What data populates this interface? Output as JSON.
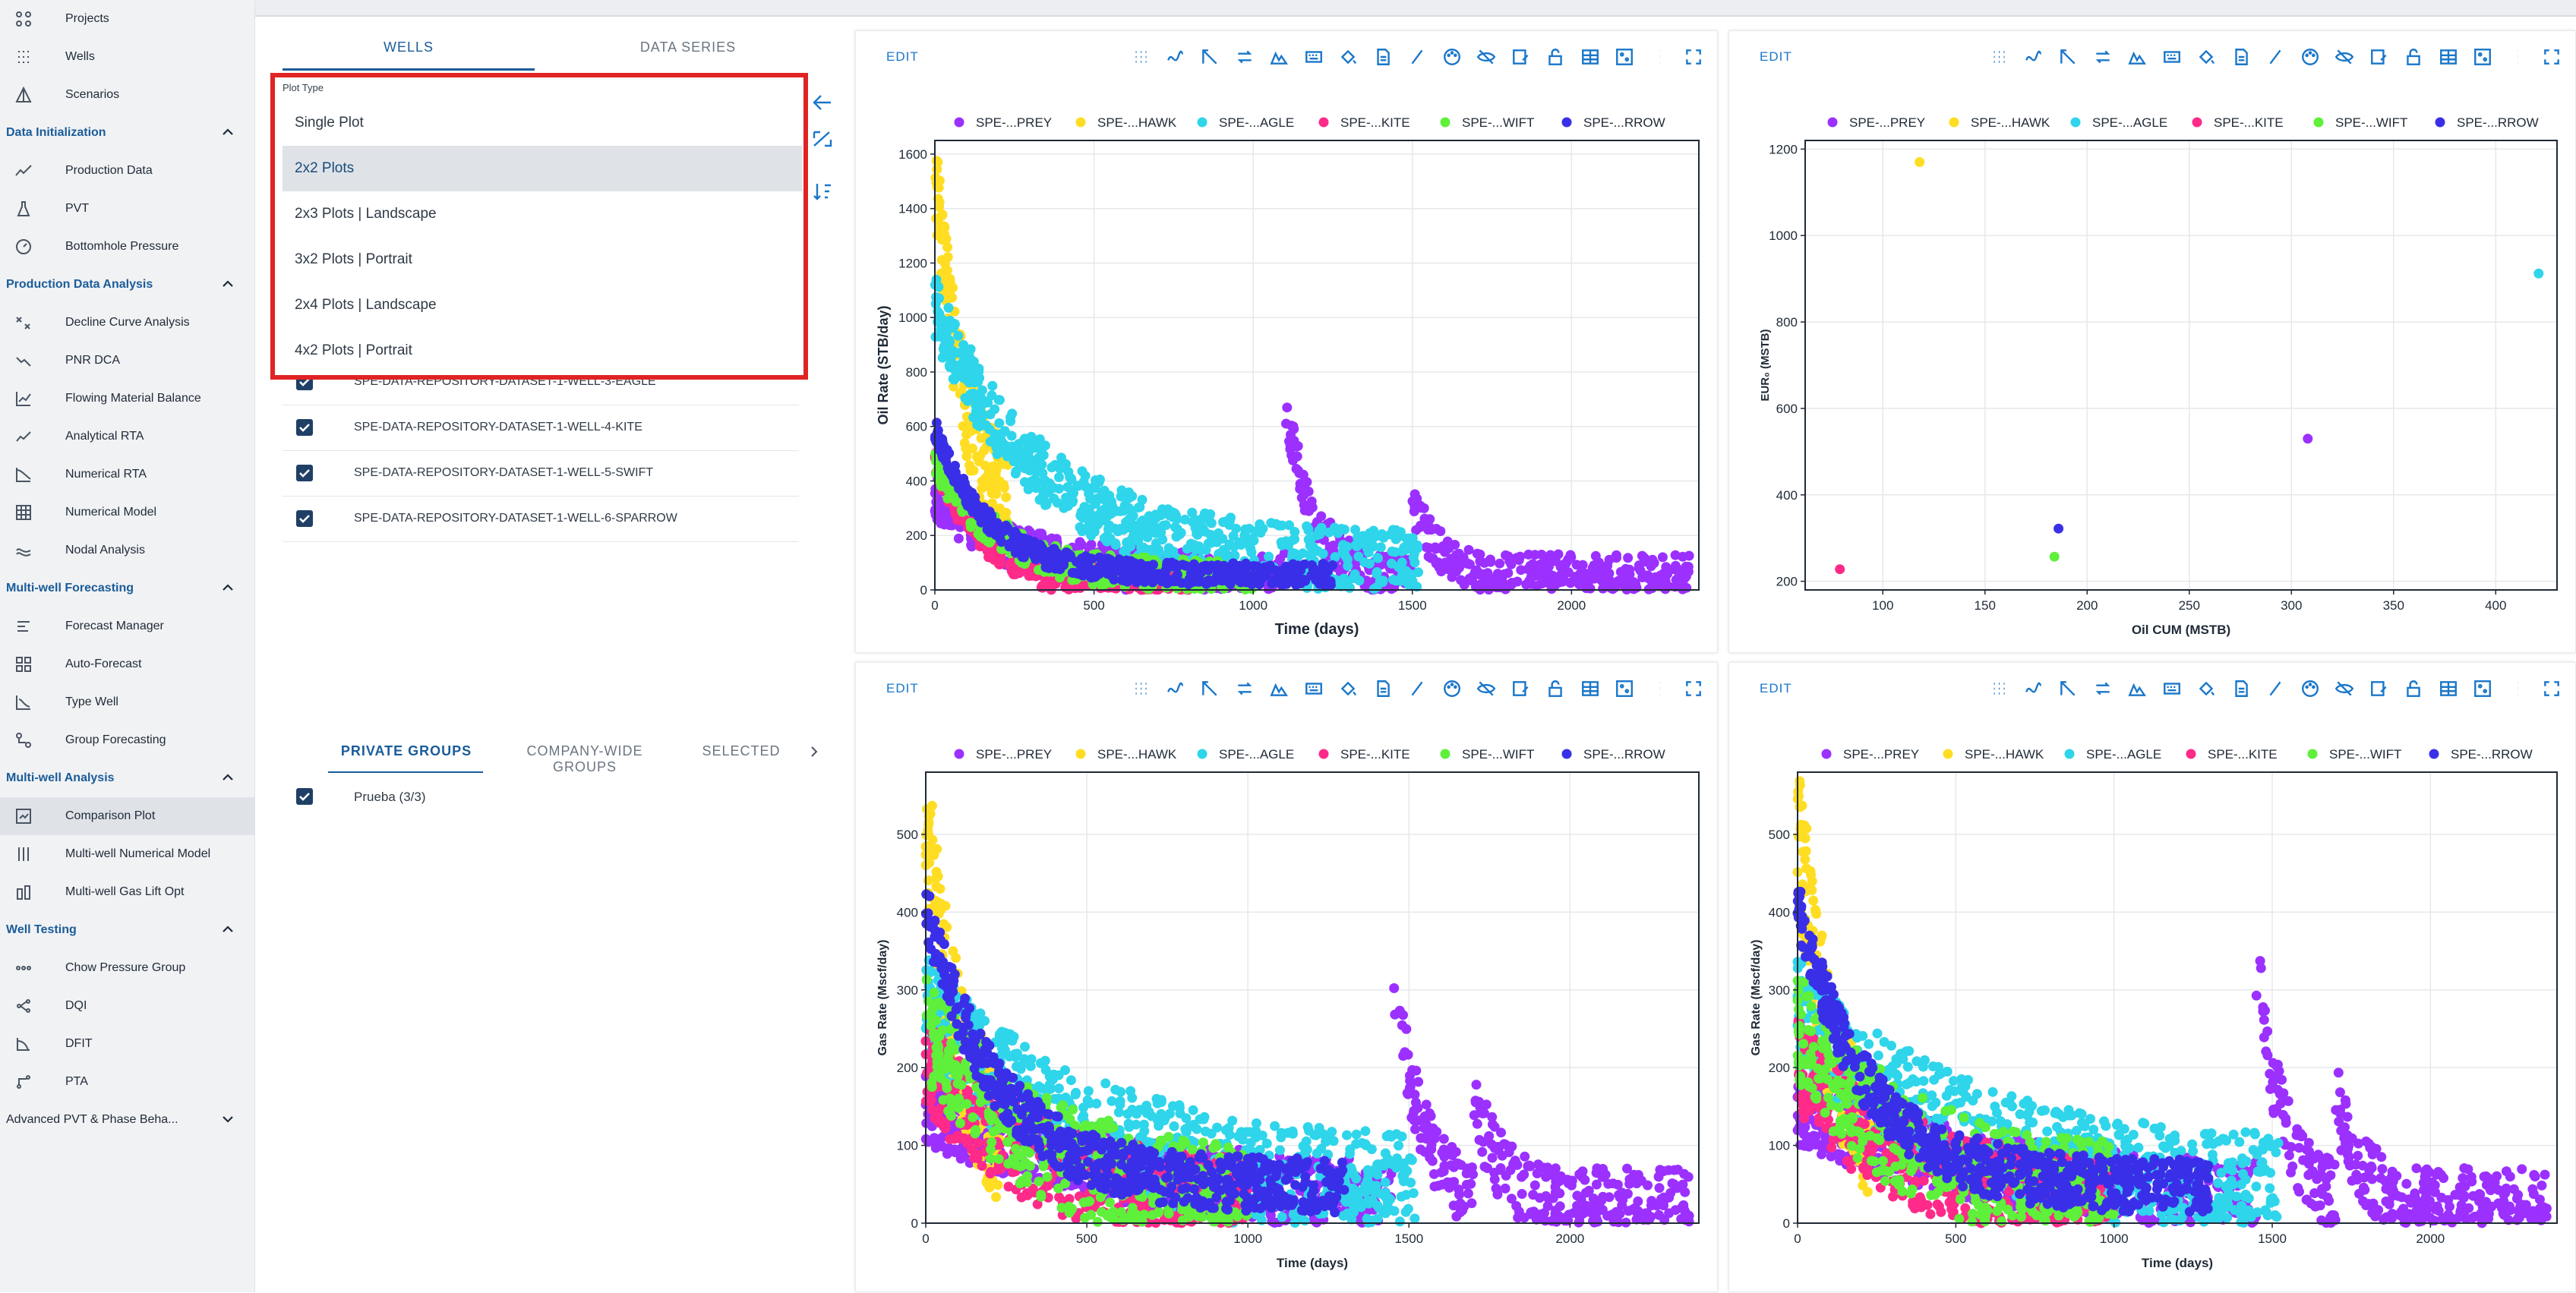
{
  "sidebar": {
    "top_items": [
      {
        "label": "Projects",
        "icon": "projects-icon"
      },
      {
        "label": "Wells",
        "icon": "wells-icon"
      },
      {
        "label": "Scenarios",
        "icon": "scenarios-icon"
      }
    ],
    "sections": [
      {
        "title": "Data Initialization",
        "items": [
          {
            "label": "Production Data",
            "icon": "production-data-icon"
          },
          {
            "label": "PVT",
            "icon": "pvt-flask-icon"
          },
          {
            "label": "Bottomhole Pressure",
            "icon": "gauge-icon"
          }
        ]
      },
      {
        "title": "Production Data Analysis",
        "items": [
          {
            "label": "Decline Curve Analysis",
            "icon": "decline-curve-icon"
          },
          {
            "label": "PNR DCA",
            "icon": "pnr-dca-icon"
          },
          {
            "label": "Flowing Material Balance",
            "icon": "material-balance-icon"
          },
          {
            "label": "Analytical RTA",
            "icon": "analytical-rta-icon"
          },
          {
            "label": "Numerical RTA",
            "icon": "numerical-rta-icon"
          },
          {
            "label": "Numerical Model",
            "icon": "numerical-model-icon"
          },
          {
            "label": "Nodal Analysis",
            "icon": "nodal-analysis-icon"
          }
        ]
      },
      {
        "title": "Multi-well Forecasting",
        "items": [
          {
            "label": "Forecast Manager",
            "icon": "forecast-manager-icon"
          },
          {
            "label": "Auto-Forecast",
            "icon": "auto-forecast-icon"
          },
          {
            "label": "Type Well",
            "icon": "type-well-icon"
          },
          {
            "label": "Group Forecasting",
            "icon": "group-forecasting-icon"
          }
        ]
      },
      {
        "title": "Multi-well Analysis",
        "items": [
          {
            "label": "Comparison Plot",
            "icon": "comparison-plot-icon",
            "active": true
          },
          {
            "label": "Multi-well Numerical Model",
            "icon": "multiwell-model-icon"
          },
          {
            "label": "Multi-well Gas Lift Opt",
            "icon": "gas-lift-icon"
          }
        ]
      },
      {
        "title": "Well Testing",
        "items": [
          {
            "label": "Chow Pressure Group",
            "icon": "chow-pressure-icon"
          },
          {
            "label": "DQI",
            "icon": "dqi-icon"
          },
          {
            "label": "DFIT",
            "icon": "dfit-icon"
          },
          {
            "label": "PTA",
            "icon": "pta-icon"
          }
        ]
      }
    ],
    "collapsed_section": "Advanced PVT & Phase Beha..."
  },
  "left_panel": {
    "tabs": [
      "WELLS",
      "DATA SERIES"
    ],
    "wells": [
      "SPE-DATA-REPOSITORY-DATASET-1-WELL-3-EAGLE",
      "SPE-DATA-REPOSITORY-DATASET-1-WELL-4-KITE",
      "SPE-DATA-REPOSITORY-DATASET-1-WELL-5-SWIFT",
      "SPE-DATA-REPOSITORY-DATASET-1-WELL-6-SPARROW"
    ],
    "group_tabs": [
      "PRIVATE GROUPS",
      "COMPANY-WIDE GROUPS",
      "SELECTED"
    ],
    "groups": [
      "Prueba (3/3)"
    ]
  },
  "plot_type_dropdown": {
    "label": "Plot Type",
    "options": [
      "Single Plot",
      "2x2 Plots",
      "2x3 Plots | Landscape",
      "3x2 Plots | Portrait",
      "2x4 Plots | Landscape",
      "4x2 Plots | Portrait"
    ],
    "selected": "2x2 Plots"
  },
  "colors": {
    "prey": "#9b30ff",
    "hawk": "#ffdd22",
    "eagle": "#2fd5ea",
    "kite": "#ff2a8a",
    "swift": "#5ef03a",
    "sparrow": "#3a2fe8",
    "accent": "#1a77c9",
    "highlight": "#e02323"
  },
  "edit_label": "EDIT",
  "legend": [
    "SPE-...PREY",
    "SPE-...HAWK",
    "SPE-...AGLE",
    "SPE-...KITE",
    "SPE-...WIFT",
    "SPE-...RROW"
  ],
  "chart_data": [
    {
      "type": "scatter",
      "xlabel": "Time (days)",
      "ylabel": "Oil Rate (STB/day)",
      "xlim": [
        0,
        2400
      ],
      "ylim": [
        0,
        1650
      ],
      "xticks": [
        0,
        500,
        1000,
        1500,
        2000
      ],
      "yticks": [
        0,
        200,
        400,
        600,
        800,
        1000,
        1200,
        1400,
        1600
      ],
      "series": [
        {
          "name": "SPE-...PREY",
          "shape": "decline",
          "params": {
            "x0": 0,
            "x1": 2370,
            "y0": 350,
            "k": 0.004,
            "floor": 60,
            "noise": 80,
            "restart": [
              [
                1100,
                720
              ],
              [
                1500,
                330
              ]
            ],
            "n": 900
          }
        },
        {
          "name": "SPE-...HAWK",
          "shape": "decline",
          "params": {
            "x0": 0,
            "x1": 230,
            "y0": 1580,
            "k": 0.012,
            "floor": 300,
            "noise": 180,
            "n": 160
          }
        },
        {
          "name": "SPE-...AGLE",
          "shape": "decline",
          "params": {
            "x0": 0,
            "x1": 1520,
            "y0": 1050,
            "k": 0.003,
            "floor": 100,
            "noise": 120,
            "n": 700
          }
        },
        {
          "name": "SPE-...KITE",
          "shape": "decline",
          "params": {
            "x0": 0,
            "x1": 800,
            "y0": 500,
            "k": 0.006,
            "floor": 20,
            "noise": 70,
            "n": 350
          }
        },
        {
          "name": "SPE-...WIFT",
          "shape": "decline",
          "params": {
            "x0": 0,
            "x1": 1000,
            "y0": 480,
            "k": 0.005,
            "floor": 50,
            "noise": 60,
            "n": 350
          }
        },
        {
          "name": "SPE-...RROW",
          "shape": "decline",
          "params": {
            "x0": 0,
            "x1": 1250,
            "y0": 600,
            "k": 0.006,
            "floor": 60,
            "noise": 40,
            "n": 500
          }
        }
      ]
    },
    {
      "type": "scatter",
      "xlabel": "Oil CUM (MSTB)",
      "ylabel": "EUR₀ (MSTB)",
      "xlim": [
        62,
        430
      ],
      "ylim": [
        180,
        1220
      ],
      "xticks": [
        100,
        150,
        200,
        250,
        300,
        350,
        400
      ],
      "yticks": [
        200,
        400,
        600,
        800,
        1000,
        1200
      ],
      "points": [
        {
          "series": "SPE-...PREY",
          "x": 308,
          "y": 530
        },
        {
          "series": "SPE-...HAWK",
          "x": 118,
          "y": 1170
        },
        {
          "series": "SPE-...AGLE",
          "x": 421,
          "y": 912
        },
        {
          "series": "SPE-...KITE",
          "x": 79,
          "y": 228
        },
        {
          "series": "SPE-...WIFT",
          "x": 184,
          "y": 257
        },
        {
          "series": "SPE-...RROW",
          "x": 186,
          "y": 322
        }
      ]
    },
    {
      "type": "scatter",
      "xlabel": "Time (days)",
      "ylabel": "Gas Rate (Mscf/day)",
      "xlim": [
        0,
        2400
      ],
      "ylim": [
        0,
        580
      ],
      "xticks": [
        0,
        500,
        1000,
        1500,
        2000
      ],
      "yticks": [
        0,
        100,
        200,
        300,
        400,
        500
      ],
      "series": [
        {
          "name": "SPE-...PREY",
          "shape": "decline",
          "params": {
            "x0": 0,
            "x1": 2370,
            "y0": 150,
            "k": 0.0015,
            "floor": 25,
            "noise": 45,
            "restart": [
              [
                1450,
                340
              ],
              [
                1700,
                170
              ]
            ],
            "n": 900
          }
        },
        {
          "name": "SPE-...HAWK",
          "shape": "decline",
          "params": {
            "x0": 0,
            "x1": 230,
            "y0": 545,
            "k": 0.01,
            "floor": 80,
            "noise": 90,
            "n": 160
          }
        },
        {
          "name": "SPE-...AGLE",
          "shape": "decline",
          "params": {
            "x0": 0,
            "x1": 1520,
            "y0": 280,
            "k": 0.002,
            "floor": 40,
            "noise": 70,
            "n": 700
          }
        },
        {
          "name": "SPE-...KITE",
          "shape": "decline",
          "params": {
            "x0": 0,
            "x1": 1000,
            "y0": 210,
            "k": 0.003,
            "floor": 20,
            "noise": 60,
            "n": 400
          }
        },
        {
          "name": "SPE-...WIFT",
          "shape": "decline",
          "params": {
            "x0": 0,
            "x1": 1000,
            "y0": 260,
            "k": 0.003,
            "floor": 30,
            "noise": 70,
            "n": 400
          }
        },
        {
          "name": "SPE-...RROW",
          "shape": "decline",
          "params": {
            "x0": 0,
            "x1": 1300,
            "y0": 410,
            "k": 0.0045,
            "floor": 50,
            "noise": 35,
            "n": 600
          }
        }
      ]
    },
    {
      "type": "scatter",
      "xlabel": "Time (days)",
      "ylabel": "Gas Rate (Mscf/day)",
      "xlim": [
        0,
        2400
      ],
      "ylim": [
        0,
        580
      ],
      "xticks": [
        0,
        500,
        1000,
        1500,
        2000
      ],
      "yticks": [
        0,
        100,
        200,
        300,
        400,
        500
      ],
      "series": [
        {
          "name": "SPE-...PREY",
          "shape": "decline",
          "params": {
            "x0": 0,
            "x1": 2370,
            "y0": 150,
            "k": 0.0015,
            "floor": 25,
            "noise": 45,
            "restart": [
              [
                1450,
                340
              ],
              [
                1700,
                170
              ]
            ],
            "n": 900
          }
        },
        {
          "name": "SPE-...HAWK",
          "shape": "decline",
          "params": {
            "x0": 0,
            "x1": 230,
            "y0": 545,
            "k": 0.01,
            "floor": 80,
            "noise": 90,
            "n": 160
          }
        },
        {
          "name": "SPE-...AGLE",
          "shape": "decline",
          "params": {
            "x0": 0,
            "x1": 1520,
            "y0": 280,
            "k": 0.002,
            "floor": 40,
            "noise": 70,
            "n": 700
          }
        },
        {
          "name": "SPE-...KITE",
          "shape": "decline",
          "params": {
            "x0": 0,
            "x1": 1000,
            "y0": 210,
            "k": 0.003,
            "floor": 20,
            "noise": 60,
            "n": 400
          }
        },
        {
          "name": "SPE-...WIFT",
          "shape": "decline",
          "params": {
            "x0": 0,
            "x1": 1000,
            "y0": 260,
            "k": 0.003,
            "floor": 30,
            "noise": 70,
            "n": 400
          }
        },
        {
          "name": "SPE-...RROW",
          "shape": "decline",
          "params": {
            "x0": 0,
            "x1": 1300,
            "y0": 410,
            "k": 0.0045,
            "floor": 50,
            "noise": 35,
            "n": 600
          }
        }
      ]
    }
  ]
}
